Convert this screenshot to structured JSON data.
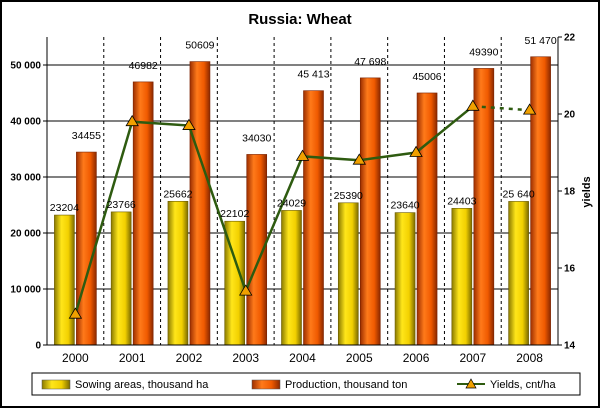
{
  "chart_data": {
    "type": "bar",
    "title": "Russia: Wheat",
    "categories": [
      "2000",
      "2001",
      "2002",
      "2003",
      "2004",
      "2005",
      "2006",
      "2007",
      "2008"
    ],
    "series": [
      {
        "name": "Sowing areas, thousand ha",
        "kind": "bar",
        "axis": "left",
        "color": "#f2d000",
        "values": [
          23204,
          23766,
          25662,
          22102,
          24029,
          25390,
          23640,
          24403,
          25640
        ],
        "labels": [
          "23204",
          "23766",
          "25662",
          "22102",
          "24029",
          "25390",
          "23640",
          "24403",
          "25 640"
        ]
      },
      {
        "name": "Production, thousand ton",
        "kind": "bar",
        "axis": "left",
        "color": "#f05a00",
        "values": [
          34455,
          46982,
          50609,
          34030,
          45413,
          47698,
          45006,
          49390,
          51470
        ],
        "labels": [
          "34455",
          "46982",
          "50609",
          "34030",
          "45 413",
          "47 698",
          "45006",
          "49390",
          "51 470"
        ]
      },
      {
        "name": "Yields, cnt/ha",
        "kind": "line",
        "axis": "right",
        "color": "#2e5b10",
        "marker_color": "#f0a000",
        "values": [
          14.8,
          19.8,
          19.7,
          15.4,
          18.9,
          18.8,
          19.0,
          20.2,
          20.1
        ],
        "dashed_last_segment": true
      }
    ],
    "y_left": {
      "range": [
        0,
        55000
      ],
      "ticks": [
        0,
        10000,
        20000,
        30000,
        40000,
        50000
      ],
      "tick_labels": [
        "0",
        "10 000",
        "20 000",
        "30 000",
        "40 000",
        "50 000"
      ]
    },
    "y_right": {
      "label": "yields",
      "range": [
        14,
        22
      ],
      "ticks": [
        14,
        16,
        18,
        20,
        22
      ],
      "tick_labels": [
        "14",
        "16",
        "18",
        "20",
        "22"
      ]
    },
    "xlabel": "",
    "grid": {
      "horizontal": true,
      "vertical_dashed": true
    },
    "legend_position": "bottom"
  }
}
